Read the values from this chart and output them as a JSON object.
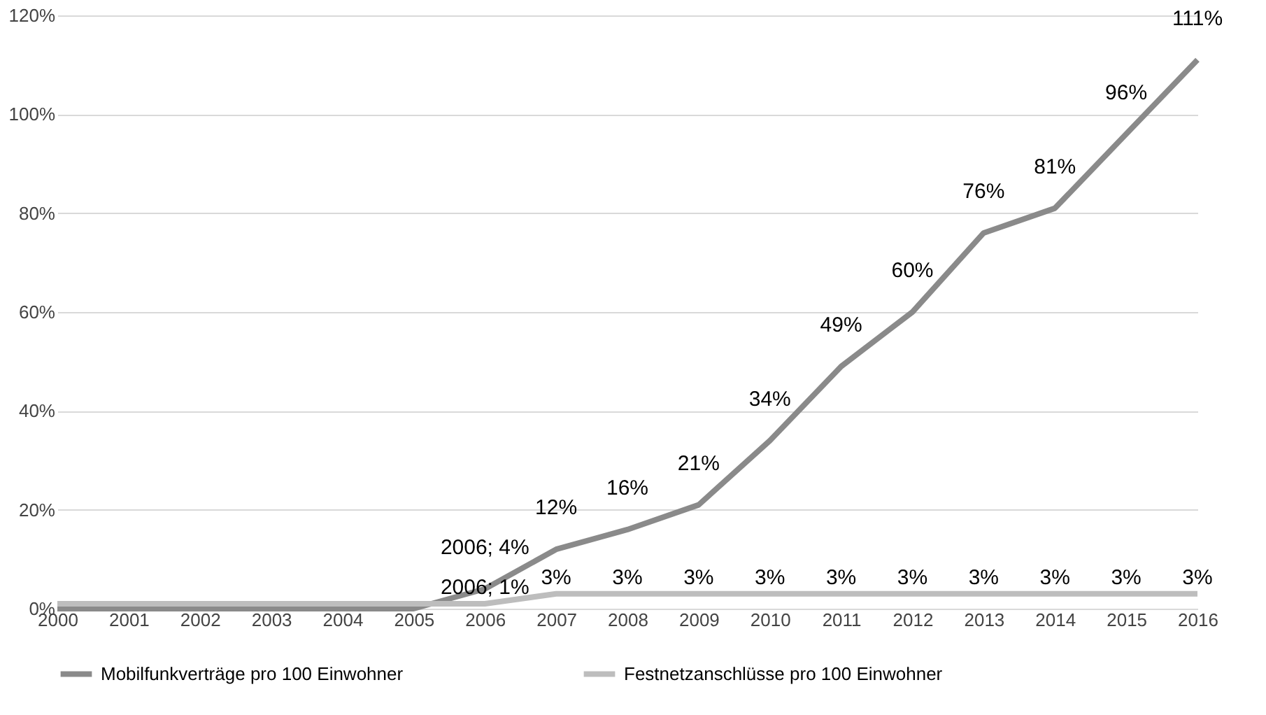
{
  "chart_data": {
    "type": "line",
    "categories": [
      "2000",
      "2001",
      "2002",
      "2003",
      "2004",
      "2005",
      "2006",
      "2007",
      "2008",
      "2009",
      "2010",
      "2011",
      "2012",
      "2013",
      "2014",
      "2015",
      "2016"
    ],
    "series": [
      {
        "name": "Mobilfunkverträge pro 100 Einwohner",
        "color": "#8a8a8a",
        "values": [
          0,
          0,
          0,
          0,
          0,
          0,
          4,
          12,
          16,
          21,
          34,
          49,
          60,
          76,
          81,
          96,
          111
        ],
        "value_labels": [
          null,
          null,
          null,
          null,
          null,
          null,
          "2006; 4%",
          "12%",
          "16%",
          "21%",
          "34%",
          "49%",
          "60%",
          "76%",
          "81%",
          "96%",
          "111%"
        ]
      },
      {
        "name": "Festnetzanschlüsse pro 100 Einwohner",
        "color": "#bdbdbd",
        "values": [
          1,
          1,
          1,
          1,
          1,
          1,
          1,
          3,
          3,
          3,
          3,
          3,
          3,
          3,
          3,
          3,
          3
        ],
        "value_labels": [
          null,
          null,
          null,
          null,
          null,
          null,
          "2006; 1%",
          "3%",
          "3%",
          "3%",
          "3%",
          "3%",
          "3%",
          "3%",
          "3%",
          "3%",
          "3%"
        ]
      }
    ],
    "ylim": [
      0,
      120
    ],
    "yticks": [
      {
        "value": 0,
        "label": "0%"
      },
      {
        "value": 20,
        "label": "20%"
      },
      {
        "value": 40,
        "label": "40%"
      },
      {
        "value": 60,
        "label": "60%"
      },
      {
        "value": 80,
        "label": "80%"
      },
      {
        "value": 100,
        "label": "100%"
      },
      {
        "value": 120,
        "label": "120%"
      }
    ],
    "grid": "y",
    "legend": "bottom",
    "marker": "none",
    "line_style": "solid"
  }
}
